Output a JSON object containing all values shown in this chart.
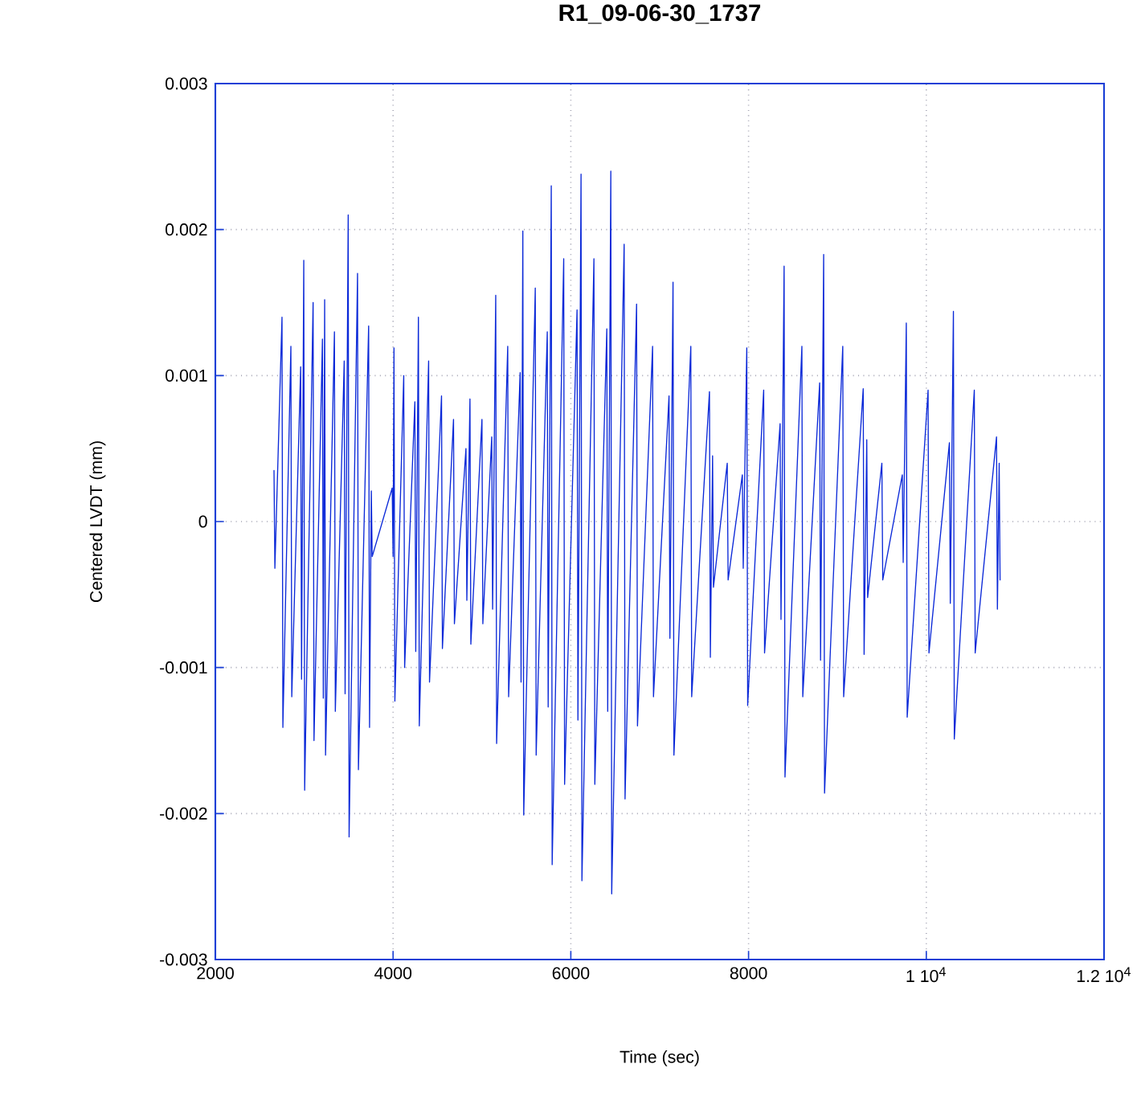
{
  "chart_data": {
    "type": "line",
    "title": "R1_09-06-30_1737",
    "xlabel": "Time (sec)",
    "ylabel": "Centered LVDT (mm)",
    "xlim": [
      2000,
      12000
    ],
    "ylim": [
      -0.003,
      0.003
    ],
    "grid": true,
    "line_style": "solid",
    "xticks": [
      2000,
      4000,
      6000,
      8000,
      {
        "value": 10000,
        "label": "1 10$^{4}$"
      },
      {
        "value": 12000,
        "label": "1.2 10$^{4}$"
      }
    ],
    "yticks": [
      -0.003,
      -0.002,
      -0.001,
      0,
      0.001,
      0.002,
      0.003
    ],
    "series": [
      {
        "color": "#0a28d8",
        "x": [
          2660,
          2670,
          2750,
          2760,
          2850,
          2860,
          2960,
          2970,
          2995,
          3005,
          3100,
          3110,
          3205,
          3215,
          3230,
          3240,
          3340,
          3350,
          3450,
          3460,
          3495,
          3505,
          3600,
          3610,
          3725,
          3735,
          3755,
          3765,
          3990,
          4000,
          4010,
          4020,
          4120,
          4130,
          4245,
          4255,
          4285,
          4295,
          4400,
          4410,
          4545,
          4555,
          4680,
          4690,
          4820,
          4830,
          4865,
          4875,
          5000,
          5010,
          5110,
          5120,
          5155,
          5165,
          5290,
          5300,
          5430,
          5440,
          5460,
          5470,
          5600,
          5610,
          5735,
          5745,
          5780,
          5790,
          5920,
          5930,
          6070,
          6080,
          6115,
          6125,
          6260,
          6270,
          6405,
          6415,
          6450,
          6460,
          6600,
          6610,
          6740,
          6750,
          6920,
          6930,
          7105,
          7115,
          7150,
          7160,
          7350,
          7360,
          7560,
          7570,
          7595,
          7605,
          7760,
          7770,
          7930,
          7940,
          7980,
          7990,
          8170,
          8180,
          8355,
          8365,
          8400,
          8410,
          8600,
          8610,
          8800,
          8810,
          8845,
          8855,
          9060,
          9070,
          9290,
          9300,
          9330,
          9340,
          9500,
          9510,
          9730,
          9740,
          9775,
          9785,
          10020,
          10030,
          10260,
          10270,
          10305,
          10315,
          10540,
          10550,
          10790,
          10800,
          10820,
          10830
        ],
        "values": [
          0.00035,
          -0.00032,
          0.0014,
          -0.00141,
          0.0012,
          -0.0012,
          0.00106,
          -0.00108,
          0.00179,
          -0.00184,
          0.0015,
          -0.0015,
          0.00125,
          -0.00121,
          0.00152,
          -0.0016,
          0.0013,
          -0.0013,
          0.0011,
          -0.00118,
          0.0021,
          -0.00216,
          0.0017,
          -0.0017,
          0.00134,
          -0.00141,
          0.00021,
          -0.00024,
          0.00023,
          -0.00024,
          0.00119,
          -0.00123,
          0.001,
          -0.001,
          0.00082,
          -0.00089,
          0.0014,
          -0.0014,
          0.0011,
          -0.0011,
          0.00086,
          -0.00087,
          0.0007,
          -0.0007,
          0.0005,
          -0.00054,
          0.00084,
          -0.00084,
          0.0007,
          -0.0007,
          0.00058,
          -0.0006,
          0.00155,
          -0.00152,
          0.0012,
          -0.0012,
          0.00102,
          -0.0011,
          0.00199,
          -0.00201,
          0.0016,
          -0.0016,
          0.0013,
          -0.00127,
          0.0023,
          -0.00235,
          0.0018,
          -0.0018,
          0.00145,
          -0.00136,
          0.00238,
          -0.00246,
          0.0018,
          -0.0018,
          0.00132,
          -0.0013,
          0.0024,
          -0.00255,
          0.0019,
          -0.0019,
          0.00149,
          -0.0014,
          0.0012,
          -0.0012,
          0.00086,
          -0.0008,
          0.00164,
          -0.0016,
          0.0012,
          -0.0012,
          0.00089,
          -0.00093,
          0.00045,
          -0.00045,
          0.0004,
          -0.0004,
          0.00032,
          -0.00032,
          0.00119,
          -0.00126,
          0.0009,
          -0.0009,
          0.00067,
          -0.00067,
          0.00175,
          -0.00175,
          0.0012,
          -0.0012,
          0.00095,
          -0.00095,
          0.00183,
          -0.00186,
          0.0012,
          -0.0012,
          0.00091,
          -0.00091,
          0.00056,
          -0.00052,
          0.0004,
          -0.0004,
          0.00032,
          -0.00028,
          0.00136,
          -0.00134,
          0.0009,
          -0.0009,
          0.00054,
          -0.00056,
          0.00144,
          -0.00149,
          0.0009,
          -0.0009,
          0.00058,
          -0.0006,
          0.0004,
          -0.0004
        ]
      }
    ]
  }
}
